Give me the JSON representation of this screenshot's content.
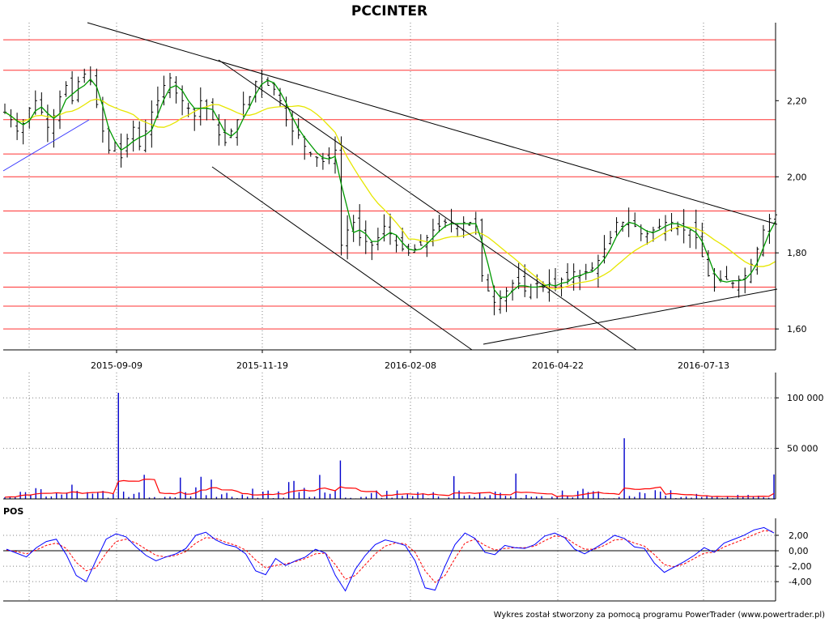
{
  "colors": {
    "background": "#ffffff",
    "candle": "#000000",
    "ma_short": "#009900",
    "ma_long": "#e6e600",
    "horizontal_levels": "#ff3333",
    "trendlines": "#000000",
    "blue_trendline": "#3333ff",
    "volume_bars": "#0000cc",
    "volume_ma": "#ff0000",
    "pos_line": "#0000ff",
    "pos_signal": "#ff0000",
    "grid": "#808080"
  },
  "chart_data": [
    {
      "type": "candlestick",
      "title": "PCCINTER",
      "x_axis_ticks": [
        "2015-09-09",
        "2015-11-19",
        "2016-02-08",
        "2016-04-22",
        "2016-07-13"
      ],
      "y_axis_ticks": [
        "2,20",
        "2,00",
        "1,80",
        "1,60"
      ],
      "y_ticks_values": [
        2.2,
        2.0,
        1.8,
        1.6
      ],
      "ylim": [
        1.545,
        2.405
      ],
      "grid": true,
      "horizontal_levels": [
        2.36,
        2.28,
        2.15,
        2.06,
        2.0,
        1.91,
        1.8,
        1.71,
        1.66,
        1.6
      ],
      "series_close": [
        2.17,
        2.15,
        2.12,
        2.14,
        2.18,
        2.2,
        2.17,
        2.13,
        2.16,
        2.21,
        2.24,
        2.2,
        2.25,
        2.27,
        2.25,
        2.19,
        2.12,
        2.07,
        2.09,
        2.05,
        2.1,
        2.13,
        2.08,
        2.12,
        2.17,
        2.2,
        2.24,
        2.26,
        2.22,
        2.2,
        2.18,
        2.16,
        2.2,
        2.18,
        2.15,
        2.11,
        2.09,
        2.12,
        2.15,
        2.19,
        2.21,
        2.25,
        2.27,
        2.24,
        2.23,
        2.2,
        2.15,
        2.12,
        2.11,
        2.08,
        2.06,
        2.05,
        2.04,
        2.05,
        2.07,
        1.82,
        1.86,
        1.88,
        1.84,
        1.83,
        1.82,
        1.84,
        1.87,
        1.85,
        1.82,
        1.81,
        1.8,
        1.81,
        1.82,
        1.84,
        1.86,
        1.87,
        1.88,
        1.88,
        1.87,
        1.88,
        1.88,
        1.87,
        1.74,
        1.7,
        1.67,
        1.68,
        1.7,
        1.72,
        1.72,
        1.7,
        1.71,
        1.72,
        1.71,
        1.72,
        1.71,
        1.73,
        1.73,
        1.75,
        1.74,
        1.75,
        1.76,
        1.78,
        1.81,
        1.84,
        1.88,
        1.88,
        1.88,
        1.87,
        1.85,
        1.85,
        1.86,
        1.87,
        1.88,
        1.88,
        1.87,
        1.86,
        1.86,
        1.84,
        1.79,
        1.74,
        1.71,
        1.73,
        1.73,
        1.72,
        1.73,
        1.74,
        1.77,
        1.81,
        1.86,
        1.89,
        1.9
      ],
      "series_ma_short": "green moving average",
      "series_ma_long": "yellow moving average"
    },
    {
      "type": "bar",
      "title": "",
      "y_axis_ticks": [
        "100 000",
        "50 000"
      ],
      "y_ticks_values": [
        100000,
        50000
      ],
      "ylim": [
        0,
        125000
      ],
      "spikes": [
        {
          "x_index": 22,
          "value": 105000
        },
        {
          "x_index": 65,
          "value": 38000
        },
        {
          "x_index": 120,
          "value": 60000
        }
      ],
      "grid": true
    },
    {
      "type": "line",
      "title": "POS",
      "y_axis_ticks": [
        "2,00",
        "0,00",
        "-2,00",
        "-4,00"
      ],
      "y_ticks_values": [
        2,
        0,
        -2,
        -4
      ],
      "ylim": [
        -6.5,
        4.2
      ],
      "series": [
        {
          "name": "",
          "values": [
            0.2,
            -0.3,
            -0.8,
            0.4,
            1.2,
            1.5,
            -0.5,
            -3.2,
            -4.0,
            -1.2,
            1.5,
            2.2,
            1.8,
            0.5,
            -0.6,
            -1.3,
            -0.8,
            -0.4,
            0.3,
            2.0,
            2.4,
            1.4,
            0.8,
            0.5,
            -0.4,
            -2.6,
            -3.1,
            -1.0,
            -1.9,
            -1.3,
            -0.8,
            0.2,
            -0.3,
            -3.2,
            -5.2,
            -2.4,
            -0.6,
            0.8,
            1.4,
            1.1,
            0.7,
            -1.3,
            -4.8,
            -5.1,
            -2.0,
            0.8,
            2.3,
            1.6,
            -0.2,
            -0.5,
            0.7,
            0.4,
            0.3,
            0.8,
            1.9,
            2.3,
            1.7,
            0.2,
            -0.4,
            0.3,
            1.1,
            2.0,
            1.6,
            0.5,
            0.3,
            -1.6,
            -2.8,
            -2.1,
            -1.4,
            -0.6,
            0.4,
            -0.2,
            1.0,
            1.5,
            2.0,
            2.7,
            3.0,
            2.3
          ]
        },
        {
          "name": "",
          "values": [
            0.1,
            -0.1,
            -0.4,
            0.1,
            0.7,
            1.0,
            0.3,
            -1.5,
            -2.6,
            -2.2,
            -0.3,
            1.2,
            1.5,
            1.0,
            0.2,
            -0.6,
            -0.8,
            -0.6,
            -0.1,
            1.0,
            1.7,
            1.6,
            1.1,
            0.7,
            0.1,
            -1.2,
            -2.2,
            -1.9,
            -1.7,
            -1.4,
            -1.0,
            -0.4,
            -0.3,
            -1.8,
            -3.7,
            -3.2,
            -1.8,
            -0.4,
            0.6,
            1.0,
            0.9,
            -0.2,
            -2.6,
            -4.1,
            -3.2,
            -1.0,
            1.0,
            1.5,
            0.7,
            0.1,
            0.3,
            0.4,
            0.4,
            0.6,
            1.3,
            1.9,
            1.8,
            0.9,
            0.2,
            0.2,
            0.7,
            1.4,
            1.5,
            1.0,
            0.6,
            -0.5,
            -1.8,
            -2.1,
            -1.7,
            -1.0,
            -0.3,
            -0.2,
            0.5,
            1.0,
            1.5,
            2.1,
            2.6,
            2.5
          ]
        }
      ],
      "grid": true
    }
  ],
  "footer_text": "Wykres został stworzony za pomocą programu PowerTrader (www.powertrader.pl)"
}
